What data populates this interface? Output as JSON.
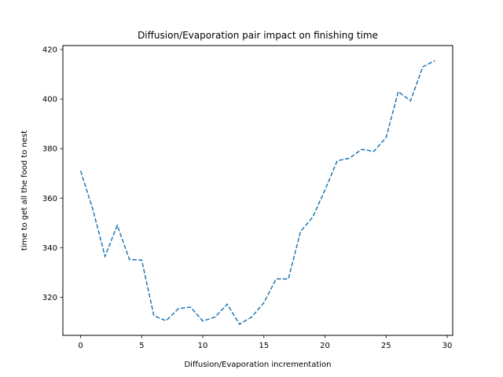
{
  "chart_data": {
    "type": "line",
    "title": "Diffusion/Evaporation pair impact on finishing time",
    "xlabel": "Diffusion/Evaporation incrementation",
    "ylabel": "time to get all the food to nest",
    "xlim": [
      -1.45,
      30.45
    ],
    "ylim": [
      304.6,
      421.6
    ],
    "xticks": [
      0,
      5,
      10,
      15,
      20,
      25,
      30
    ],
    "yticks": [
      320,
      340,
      360,
      380,
      400,
      420
    ],
    "grid": false,
    "line_style": "dashed",
    "series": [
      {
        "color": "#1f77b4",
        "x": [
          0,
          1,
          2,
          3,
          4,
          5,
          6,
          7,
          8,
          9,
          10,
          11,
          12,
          13,
          14,
          15,
          16,
          17,
          18,
          19,
          20,
          21,
          22,
          23,
          24,
          25,
          26,
          27,
          28,
          29
        ],
        "y": [
          371,
          355.5,
          336.5,
          349,
          335.2,
          335,
          312.5,
          310.5,
          315.4,
          316,
          310.4,
          312,
          317.2,
          309.1,
          312,
          317.8,
          327.4,
          327.4,
          346.5,
          352.4,
          363.3,
          375.1,
          376.1,
          379.7,
          378.9,
          384.5,
          403,
          399.3,
          413,
          415.5
        ]
      }
    ]
  }
}
